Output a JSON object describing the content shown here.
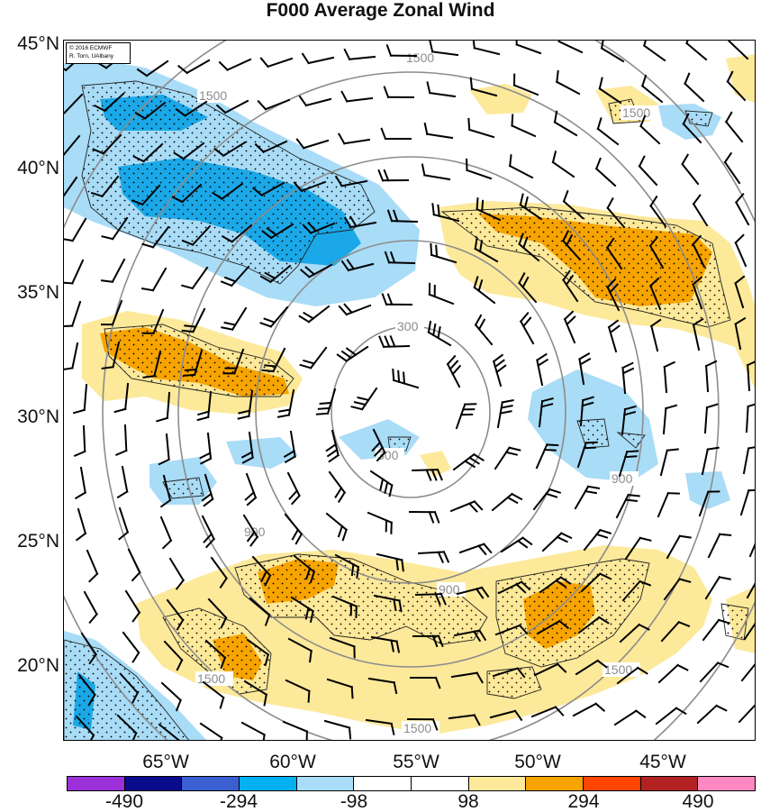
{
  "title": "F000 Average Zonal Wind",
  "credit": {
    "line1": "© 2016 ECMWF",
    "line2": "R. Torn, UAlbany"
  },
  "lat_labels": [
    "45°N",
    "40°N",
    "35°N",
    "30°N",
    "25°N",
    "20°N"
  ],
  "lon_labels": [
    "65°W",
    "60°W",
    "55°W",
    "50°W",
    "45°W"
  ],
  "contour_labels": {
    "ring_300": "300",
    "ring_900": "900",
    "ring_1500": "1500"
  },
  "colorbar": {
    "colors": [
      "#9b30d9",
      "#0a0a8c",
      "#3a5fd0",
      "#00b0f0",
      "#a9dcf6",
      "#ffffff",
      "#ffffff",
      "#fde99a",
      "#f7a400",
      "#ff4500",
      "#b22222",
      "#ff88c2"
    ],
    "tick_labels": [
      "-490",
      "-294",
      "-98",
      "98",
      "294",
      "490"
    ]
  },
  "fill_colors": {
    "light_blue": "#a9dcf6",
    "blue": "#1aa8e8",
    "light_yellow": "#fde99a",
    "orange": "#f7a400"
  }
}
